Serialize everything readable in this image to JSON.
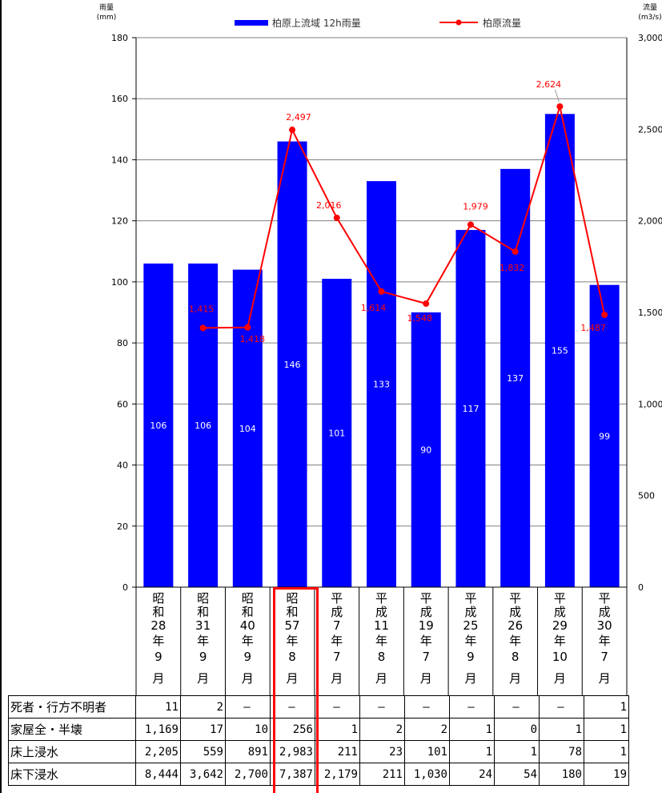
{
  "chart_data": {
    "type": "bar+line",
    "categories": [
      "昭和28年9月",
      "昭和31年9月",
      "昭和40年9月",
      "昭和57年8月",
      "平成7年7月",
      "平成11年8月",
      "平成19年7月",
      "平成25年9月",
      "平成26年8月",
      "平成29年10月",
      "平成30年7月"
    ],
    "category_chars": [
      [
        "昭",
        "和",
        "28",
        "年",
        "9",
        "月"
      ],
      [
        "昭",
        "和",
        "31",
        "年",
        "9",
        "月"
      ],
      [
        "昭",
        "和",
        "40",
        "年",
        "9",
        "月"
      ],
      [
        "昭",
        "和",
        "57",
        "年",
        "8",
        "月"
      ],
      [
        "平",
        "成",
        "7",
        "年",
        "7",
        "月"
      ],
      [
        "平",
        "成",
        "11",
        "年",
        "8",
        "月"
      ],
      [
        "平",
        "成",
        "19",
        "年",
        "7",
        "月"
      ],
      [
        "平",
        "成",
        "25",
        "年",
        "9",
        "月"
      ],
      [
        "平",
        "成",
        "26",
        "年",
        "8",
        "月"
      ],
      [
        "平",
        "成",
        "29",
        "年",
        "10",
        "月"
      ],
      [
        "平",
        "成",
        "30",
        "年",
        "7",
        "月"
      ]
    ],
    "series": [
      {
        "name": "柏原上流域 12h雨量",
        "type": "bar",
        "axis": "left",
        "color": "#0000ff",
        "values": [
          106,
          106,
          104,
          146,
          101,
          133,
          90,
          117,
          137,
          155,
          99
        ]
      },
      {
        "name": "柏原流量",
        "type": "line",
        "axis": "right",
        "color": "#ff0000",
        "values": [
          null,
          1415,
          1418,
          2497,
          2016,
          1614,
          1548,
          1979,
          1832,
          2624,
          1487
        ],
        "labels": [
          null,
          "1,415",
          "1,418",
          "2,497",
          "2,016",
          "1,614",
          "1,548",
          "1,979",
          "1,832",
          "2,624",
          "1,487"
        ]
      }
    ],
    "left_axis": {
      "title": "雨量",
      "unit": "(mm)",
      "min": 0,
      "max": 180,
      "ticks": [
        "0",
        "20",
        "40",
        "60",
        "80",
        "100",
        "120",
        "140",
        "160",
        "180"
      ]
    },
    "right_axis": {
      "title": "流量",
      "unit": "(m3/s)",
      "min": 0,
      "max": 3000,
      "ticks": [
        "0",
        "500",
        "1,000",
        "1,500",
        "2,000",
        "2,500",
        "3,000"
      ]
    },
    "grid": true,
    "legend_position": "top"
  },
  "table": {
    "rows": [
      {
        "label": "死者・行方不明者",
        "values": [
          "11",
          "2",
          "―",
          "―",
          "―",
          "―",
          "―",
          "―",
          "―",
          "―",
          "1"
        ]
      },
      {
        "label": "家屋全・半壊",
        "values": [
          "1,169",
          "17",
          "10",
          "256",
          "1",
          "2",
          "2",
          "1",
          "0",
          "1",
          "1"
        ]
      },
      {
        "label": "床上浸水",
        "values": [
          "2,205",
          "559",
          "891",
          "2,983",
          "211",
          "23",
          "101",
          "1",
          "1",
          "78",
          "1"
        ]
      },
      {
        "label": "床下浸水",
        "values": [
          "8,444",
          "3,642",
          "2,700",
          "7,387",
          "2,179",
          "211",
          "1,030",
          "24",
          "54",
          "180",
          "19"
        ]
      }
    ]
  },
  "highlight_index": 3
}
